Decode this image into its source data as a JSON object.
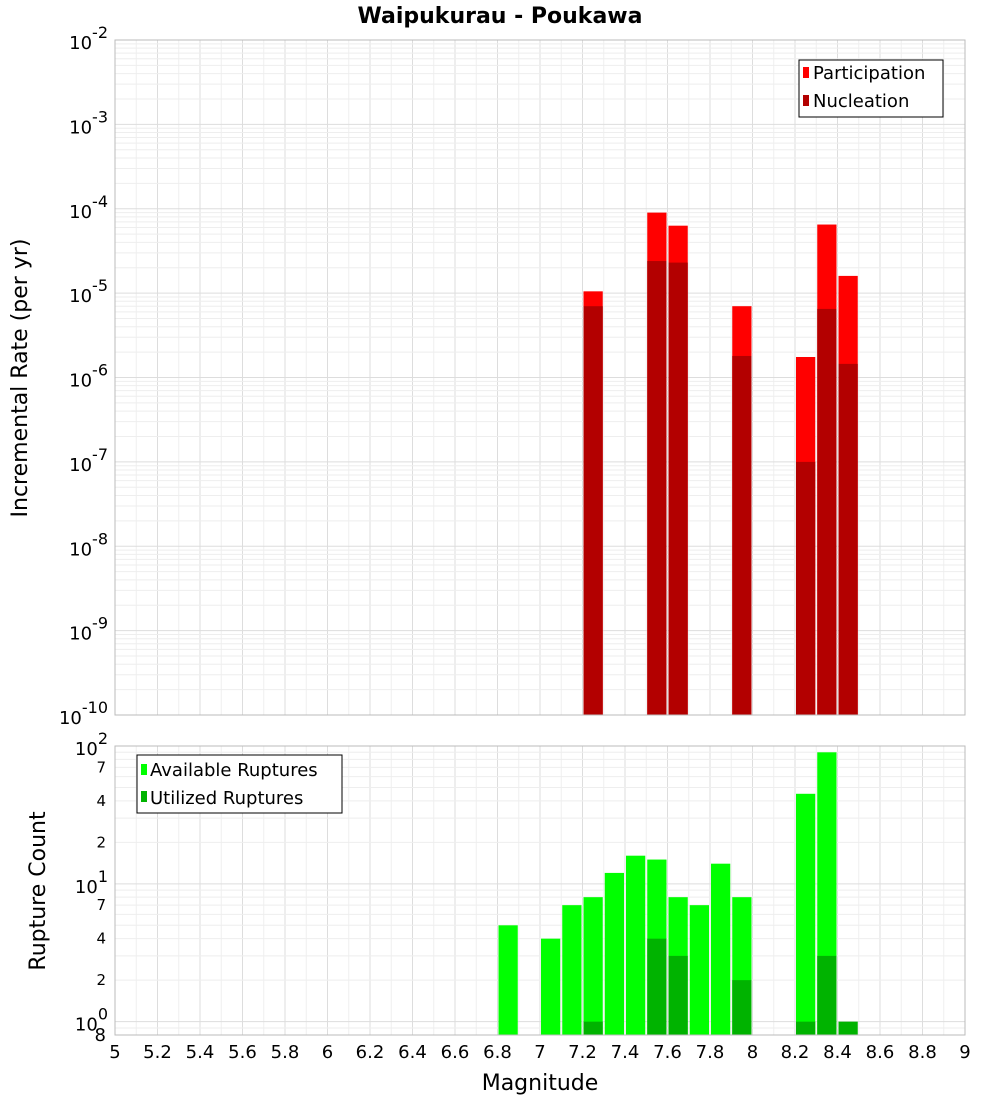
{
  "chart_data": [
    {
      "type": "bar",
      "title": "Waipukurau - Poukawa",
      "xlabel": "Magnitude",
      "ylabel": "Incremental Rate (per yr)",
      "yscale": "log",
      "ylim": [
        1e-10,
        0.01
      ],
      "xlim": [
        5,
        9
      ],
      "legend_position": "top-right",
      "grid": true,
      "y_ticks": [
        {
          "base": "10",
          "exp": "-10"
        },
        {
          "base": "10",
          "exp": "-9"
        },
        {
          "base": "10",
          "exp": "-8"
        },
        {
          "base": "10",
          "exp": "-7"
        },
        {
          "base": "10",
          "exp": "-6"
        },
        {
          "base": "10",
          "exp": "-5"
        },
        {
          "base": "10",
          "exp": "-4"
        },
        {
          "base": "10",
          "exp": "-3"
        },
        {
          "base": "10",
          "exp": "-2"
        }
      ],
      "series": [
        {
          "name": "Participation",
          "color": "#ff0000",
          "x": [
            7.25,
            7.55,
            7.65,
            7.95,
            8.25,
            8.35,
            8.45
          ],
          "values": [
            1.05e-05,
            9e-05,
            6.3e-05,
            7e-06,
            1.75e-06,
            6.5e-05,
            1.6e-05
          ]
        },
        {
          "name": "Nucleation",
          "color": "#b30000",
          "x": [
            7.25,
            7.55,
            7.65,
            7.95,
            8.25,
            8.35,
            8.45
          ],
          "values": [
            7e-06,
            2.4e-05,
            2.3e-05,
            1.8e-06,
            1e-07,
            6.5e-06,
            1.45e-06
          ]
        }
      ]
    },
    {
      "type": "bar",
      "xlabel": "Magnitude",
      "ylabel": "Rupture Count",
      "yscale": "log",
      "ylim": [
        0.8,
        100
      ],
      "xlim": [
        5,
        9
      ],
      "legend_position": "top-left",
      "grid": true,
      "y_ticks": [
        {
          "base": "10",
          "exp": "0"
        },
        {
          "base": "10",
          "exp": "1"
        },
        {
          "base": "10",
          "exp": "2"
        }
      ],
      "y_minor_labels": [
        {
          "value": 2,
          "label": "2"
        },
        {
          "value": 4,
          "label": "4"
        },
        {
          "value": 7,
          "label": "7"
        },
        {
          "value": 20,
          "label": "2"
        },
        {
          "value": 40,
          "label": "4"
        },
        {
          "value": 70,
          "label": "7"
        }
      ],
      "y_bottom_label": "8",
      "series": [
        {
          "name": "Available Ruptures",
          "color": "#00ff00",
          "x": [
            6.85,
            7.05,
            7.15,
            7.25,
            7.35,
            7.45,
            7.55,
            7.65,
            7.75,
            7.85,
            7.95,
            8.25,
            8.35
          ],
          "values": [
            5,
            4,
            7,
            8,
            12,
            16,
            15,
            8,
            7,
            14,
            8,
            45,
            90
          ]
        },
        {
          "name": "Utilized Ruptures",
          "color": "#00b300",
          "x": [
            7.25,
            7.55,
            7.65,
            7.95,
            8.25,
            8.35,
            8.45
          ],
          "values": [
            1,
            4,
            3,
            2,
            1,
            3,
            1
          ]
        }
      ]
    }
  ],
  "x_ticks": [
    "5",
    "5.2",
    "5.4",
    "5.6",
    "5.8",
    "6",
    "6.2",
    "6.4",
    "6.6",
    "6.8",
    "7",
    "7.2",
    "7.4",
    "7.6",
    "7.8",
    "8",
    "8.2",
    "8.4",
    "8.6",
    "8.8",
    "9"
  ]
}
